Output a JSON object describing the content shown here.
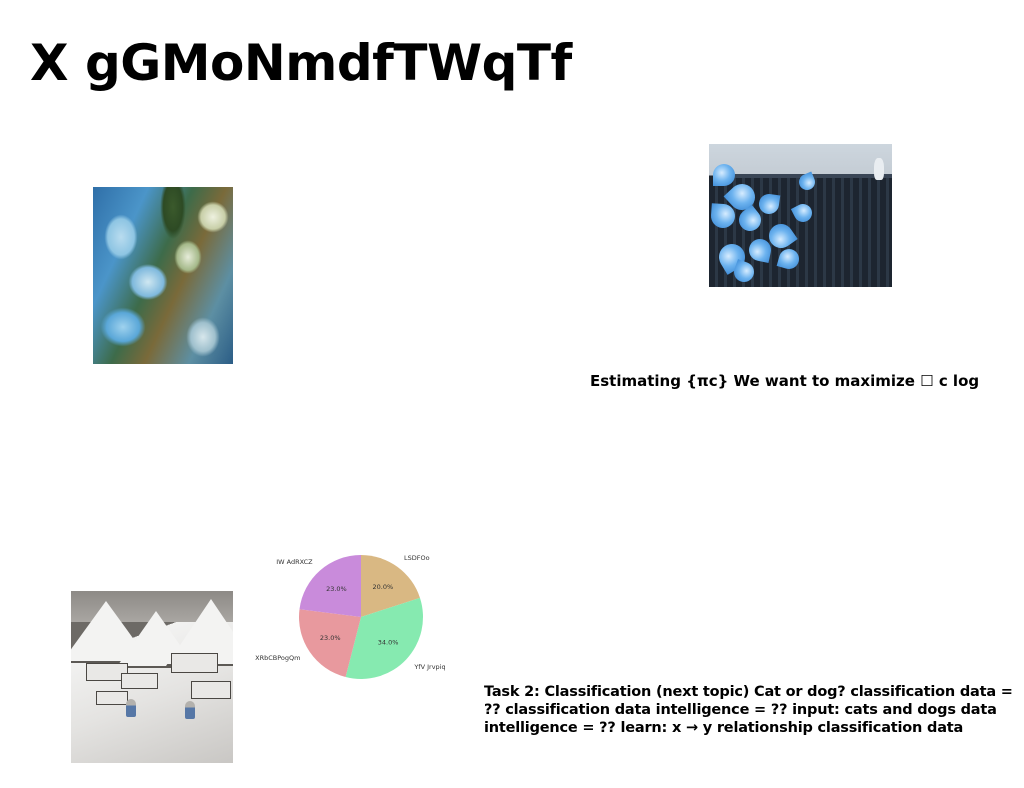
{
  "title": "X gGMoNmdfTWqTf",
  "estimating_text": "Estimating {πc} We want to maximize ☐ c log",
  "task_text": "Task 2: Classification (next topic) Cat or dog? classification data = ?? classification data intelligence = ?? input: cats and dogs data intelligence = ?? learn: x → y relationship classification data",
  "images": {
    "abstract_painting": "abstract blue marbled painting",
    "flowers_photo": "blue flowers photo",
    "snow_village": "snowy village print"
  },
  "chart_data": {
    "type": "pie",
    "title": "",
    "slices": [
      {
        "label": "LSDFOo",
        "value": 20.0,
        "pct_label": "20.0%",
        "color": "#d9b883"
      },
      {
        "label": "YfV Jrvpiq",
        "value": 34.0,
        "pct_label": "34.0%",
        "color": "#86eab0"
      },
      {
        "label": "XRbCBPogQm",
        "value": 23.0,
        "pct_label": "23.0%",
        "color": "#e8999e"
      },
      {
        "label": "IW AdRXCZ",
        "value": 23.0,
        "pct_label": "23.0%",
        "color": "#c98bdb"
      }
    ]
  }
}
